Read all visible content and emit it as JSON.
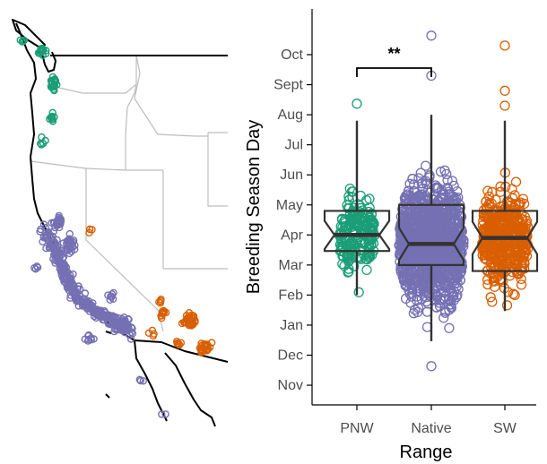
{
  "map": {
    "colors": {
      "coast": "#000000",
      "border": "#bdbdbd",
      "pnw": "#1b9e77",
      "native": "#7570b3",
      "sw": "#d95f02"
    }
  },
  "chart_data": {
    "type": "box",
    "title": "",
    "xlabel": "Range",
    "ylabel": "Breeding Season Day",
    "categories": [
      "PNW",
      "Native",
      "SW"
    ],
    "y_ticks": [
      "Nov",
      "Dec",
      "Jan",
      "Feb",
      "Mar",
      "Apr",
      "May",
      "Jun",
      "Jul",
      "Aug",
      "Sept",
      "Oct"
    ],
    "ylim": [
      "Nov",
      "Oct"
    ],
    "grid": false,
    "notched": true,
    "colors": {
      "PNW": "#1b9e77",
      "Native": "#7570b3",
      "SW": "#d95f02"
    },
    "boxes": [
      {
        "name": "PNW",
        "whisker_low": "Feb",
        "q1": "Mar 15",
        "median": "Apr",
        "q3": "Apr 25",
        "whisker_high": "Jul 25",
        "outliers": [
          "Aug 12"
        ]
      },
      {
        "name": "Native",
        "whisker_low": "Dec 15",
        "q1": "Mar 1",
        "median": "Mar 22",
        "q3": "May",
        "whisker_high": "Aug",
        "outliers": [
          "Nov 20",
          "Sept 10",
          "Oct 20"
        ]
      },
      {
        "name": "SW",
        "whisker_low": "Jan 15",
        "q1": "Feb 25",
        "median": "Mar 28",
        "q3": "Apr 25",
        "whisker_high": "Jul 25",
        "outliers": [
          "Aug 10",
          "Aug 25",
          "Oct 10"
        ]
      }
    ],
    "annotations": [
      {
        "text": "**",
        "between": [
          "PNW",
          "Native"
        ]
      }
    ]
  }
}
